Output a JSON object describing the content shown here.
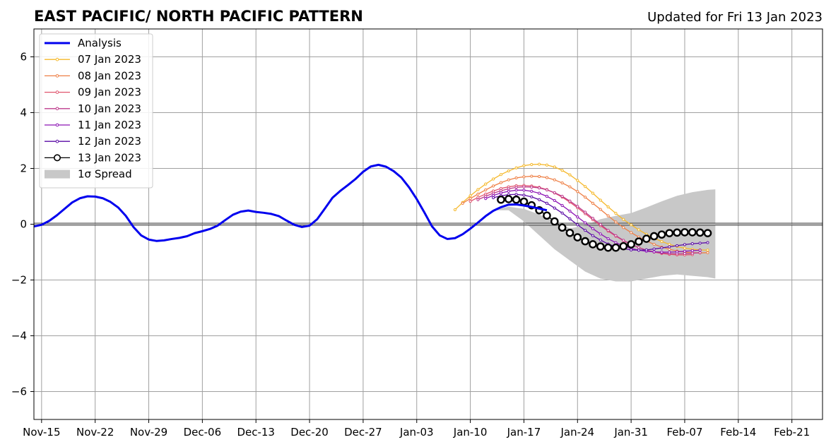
{
  "chart_data": {
    "type": "line",
    "title": "EAST PACIFIC/ NORTH PACIFIC PATTERN",
    "subtitle": "Updated for Fri 13 Jan 2023",
    "xlim": [
      "2022-11-14",
      "2023-02-25"
    ],
    "ylim": [
      -7,
      7
    ],
    "yticks": [
      -6,
      -4,
      -2,
      0,
      2,
      4,
      6
    ],
    "xticks": [
      {
        "date": "2022-11-15",
        "label": "Nov-15"
      },
      {
        "date": "2022-11-22",
        "label": "Nov-22"
      },
      {
        "date": "2022-11-29",
        "label": "Nov-29"
      },
      {
        "date": "2022-12-06",
        "label": "Dec-06"
      },
      {
        "date": "2022-12-13",
        "label": "Dec-13"
      },
      {
        "date": "2022-12-20",
        "label": "Dec-20"
      },
      {
        "date": "2022-12-27",
        "label": "Dec-27"
      },
      {
        "date": "2023-01-03",
        "label": "Jan-03"
      },
      {
        "date": "2023-01-10",
        "label": "Jan-10"
      },
      {
        "date": "2023-01-17",
        "label": "Jan-17"
      },
      {
        "date": "2023-01-24",
        "label": "Jan-24"
      },
      {
        "date": "2023-01-31",
        "label": "Jan-31"
      },
      {
        "date": "2023-02-07",
        "label": "Feb-07"
      },
      {
        "date": "2023-02-14",
        "label": "Feb-14"
      },
      {
        "date": "2023-02-21",
        "label": "Feb-21"
      }
    ],
    "grid": true,
    "legend_position": "top-left",
    "analysis": {
      "name": "Analysis",
      "color": "#0000ee",
      "start_date": "2022-11-14",
      "values": [
        -0.08,
        -0.02,
        0.12,
        0.32,
        0.55,
        0.78,
        0.93,
        1.0,
        0.99,
        0.93,
        0.8,
        0.6,
        0.3,
        -0.1,
        -0.4,
        -0.55,
        -0.6,
        -0.58,
        -0.53,
        -0.49,
        -0.43,
        -0.32,
        -0.25,
        -0.17,
        -0.05,
        0.15,
        0.34,
        0.45,
        0.49,
        0.44,
        0.41,
        0.37,
        0.29,
        0.13,
        -0.02,
        -0.1,
        -0.05,
        0.18,
        0.56,
        0.95,
        1.19,
        1.4,
        1.62,
        1.88,
        2.07,
        2.13,
        2.06,
        1.9,
        1.67,
        1.32,
        0.9,
        0.42,
        -0.08,
        -0.4,
        -0.53,
        -0.5,
        -0.36,
        -0.16,
        0.06,
        0.29,
        0.48,
        0.61,
        0.7,
        0.71,
        0.67,
        0.62,
        0.56,
        0.5
      ]
    },
    "spread": {
      "name": "1σ Spread",
      "color": "#c8c8c8",
      "dates": [
        "2023-01-13",
        "2023-01-15",
        "2023-01-17",
        "2023-01-19",
        "2023-01-21",
        "2023-01-23",
        "2023-01-25",
        "2023-01-27",
        "2023-01-29",
        "2023-01-31",
        "2023-02-02",
        "2023-02-04",
        "2023-02-06",
        "2023-02-08",
        "2023-02-10",
        "2023-02-11"
      ],
      "upper": [
        0.5,
        0.63,
        0.55,
        0.35,
        0.1,
        -0.15,
        -0.05,
        0.18,
        0.3,
        0.4,
        0.6,
        0.82,
        1.02,
        1.15,
        1.23,
        1.25
      ],
      "lower": [
        0.5,
        0.5,
        0.1,
        -0.4,
        -0.9,
        -1.3,
        -1.7,
        -1.95,
        -2.05,
        -2.05,
        -1.95,
        -1.85,
        -1.8,
        -1.85,
        -1.9,
        -1.95
      ]
    },
    "series": [
      {
        "name": "07 Jan 2023",
        "color": "#f5b82a",
        "marker": "small",
        "start_date": "2023-01-08",
        "values": [
          0.52,
          0.78,
          1.02,
          1.24,
          1.44,
          1.62,
          1.78,
          1.91,
          2.02,
          2.1,
          2.14,
          2.15,
          2.12,
          2.05,
          1.93,
          1.77,
          1.57,
          1.35,
          1.11,
          0.86,
          0.62,
          0.39,
          0.17,
          -0.02,
          -0.2,
          -0.36,
          -0.5,
          -0.62,
          -0.72,
          -0.8,
          -0.86,
          -0.9,
          -0.92,
          -0.93
        ]
      },
      {
        "name": "08 Jan 2023",
        "color": "#ee7f45",
        "marker": "small",
        "start_date": "2023-01-09",
        "values": [
          0.75,
          0.92,
          1.08,
          1.23,
          1.37,
          1.49,
          1.59,
          1.66,
          1.7,
          1.72,
          1.71,
          1.67,
          1.59,
          1.48,
          1.34,
          1.17,
          0.97,
          0.75,
          0.53,
          0.3,
          0.08,
          -0.12,
          -0.3,
          -0.46,
          -0.6,
          -0.72,
          -0.82,
          -0.9,
          -0.96,
          -1.0,
          -1.02,
          -1.03,
          -1.02
        ]
      },
      {
        "name": "09 Jan 2023",
        "color": "#e0556e",
        "marker": "small",
        "start_date": "2023-01-10",
        "values": [
          0.82,
          0.96,
          1.08,
          1.19,
          1.28,
          1.34,
          1.38,
          1.39,
          1.37,
          1.32,
          1.24,
          1.12,
          0.97,
          0.79,
          0.59,
          0.38,
          0.16,
          -0.05,
          -0.25,
          -0.43,
          -0.59,
          -0.73,
          -0.84,
          -0.93,
          -1.0,
          -1.05,
          -1.08,
          -1.1,
          -1.1,
          -1.09
        ]
      },
      {
        "name": "10 Jan 2023",
        "color": "#be3b8c",
        "marker": "small",
        "start_date": "2023-01-11",
        "values": [
          0.88,
          1.0,
          1.11,
          1.2,
          1.27,
          1.32,
          1.34,
          1.33,
          1.3,
          1.23,
          1.13,
          1.0,
          0.83,
          0.64,
          0.43,
          0.21,
          -0.01,
          -0.22,
          -0.41,
          -0.58,
          -0.72,
          -0.84,
          -0.93,
          -0.99,
          -1.03,
          -1.05,
          -1.06,
          -1.05,
          -1.04,
          -1.02
        ]
      },
      {
        "name": "11 Jan 2023",
        "color": "#8c14b4",
        "marker": "small",
        "start_date": "2023-01-12",
        "values": [
          0.92,
          1.03,
          1.12,
          1.18,
          1.22,
          1.22,
          1.18,
          1.11,
          1.0,
          0.85,
          0.67,
          0.47,
          0.26,
          0.05,
          -0.16,
          -0.35,
          -0.52,
          -0.66,
          -0.78,
          -0.87,
          -0.93,
          -0.97,
          -0.99,
          -1.0,
          -1.0,
          -0.99,
          -0.97,
          -0.95,
          -0.93
        ]
      },
      {
        "name": "12 Jan 2023",
        "color": "#5a0aa5",
        "marker": "small",
        "start_date": "2023-01-13",
        "values": [
          0.95,
          1.02,
          1.06,
          1.07,
          1.04,
          0.98,
          0.88,
          0.75,
          0.58,
          0.4,
          0.19,
          -0.02,
          -0.22,
          -0.41,
          -0.57,
          -0.71,
          -0.81,
          -0.88,
          -0.92,
          -0.93,
          -0.92,
          -0.89,
          -0.85,
          -0.81,
          -0.77,
          -0.73,
          -0.7,
          -0.68,
          -0.66
        ]
      },
      {
        "name": "13 Jan 2023",
        "color": "#000000",
        "marker": "circle",
        "start_date": "2023-01-14",
        "values": [
          0.88,
          0.9,
          0.88,
          0.81,
          0.68,
          0.5,
          0.31,
          0.1,
          -0.12,
          -0.31,
          -0.47,
          -0.61,
          -0.72,
          -0.8,
          -0.84,
          -0.84,
          -0.79,
          -0.72,
          -0.62,
          -0.52,
          -0.43,
          -0.37,
          -0.32,
          -0.3,
          -0.29,
          -0.29,
          -0.3,
          -0.32
        ]
      }
    ]
  }
}
